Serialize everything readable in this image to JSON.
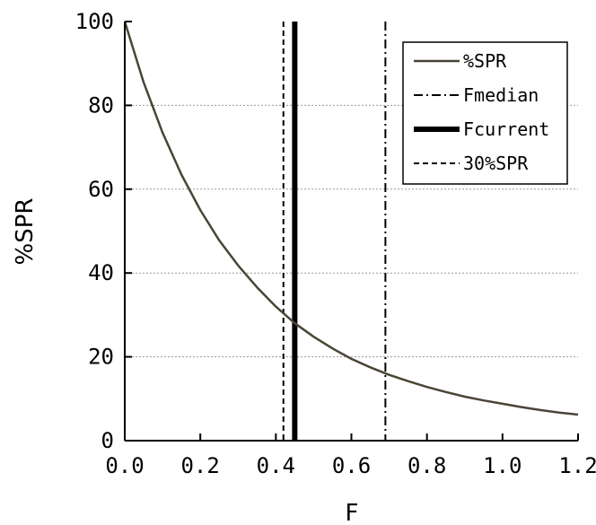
{
  "chart_data": {
    "type": "line",
    "title": "",
    "xlabel": "F",
    "ylabel": "%SPR",
    "xlim": [
      0.0,
      1.2
    ],
    "ylim": [
      0,
      100
    ],
    "x_ticks": [
      0.0,
      0.2,
      0.4,
      0.6,
      0.8,
      1.0,
      1.2
    ],
    "x_tick_labels": [
      "0.0",
      "0.2",
      "0.4",
      "0.6",
      "0.8",
      "1.0",
      "1.2"
    ],
    "y_ticks": [
      0,
      20,
      40,
      60,
      80,
      100
    ],
    "y_tick_labels": [
      "0",
      "20",
      "40",
      "60",
      "80",
      "100"
    ],
    "grid": {
      "horizontal": true,
      "vertical": false
    },
    "legend_position": "top-right",
    "series": [
      {
        "name": "%SPR",
        "color": "#4a4535",
        "style": "solid",
        "x": [
          0.0,
          0.05,
          0.1,
          0.15,
          0.2,
          0.25,
          0.3,
          0.35,
          0.4,
          0.45,
          0.5,
          0.55,
          0.6,
          0.65,
          0.7,
          0.75,
          0.8,
          0.85,
          0.9,
          0.95,
          1.0,
          1.05,
          1.1,
          1.15,
          1.2
        ],
        "y": [
          100,
          85.5,
          73.5,
          63.5,
          55.0,
          47.8,
          41.8,
          36.6,
          32.0,
          28.0,
          24.8,
          22.0,
          19.5,
          17.5,
          15.7,
          14.2,
          12.8,
          11.6,
          10.5,
          9.6,
          8.8,
          8.0,
          7.3,
          6.7,
          6.2
        ]
      }
    ],
    "vertical_lines": [
      {
        "name": "Fmedian",
        "x": 0.69,
        "color": "#000000",
        "style": "dashdot"
      },
      {
        "name": "Fcurrent",
        "x": 0.45,
        "color": "#000000",
        "style": "thick"
      },
      {
        "name": "30%SPR",
        "x": 0.42,
        "color": "#000000",
        "style": "dashed"
      }
    ],
    "legend": [
      "%SPR",
      "Fmedian",
      "Fcurrent",
      "30%SPR"
    ]
  }
}
